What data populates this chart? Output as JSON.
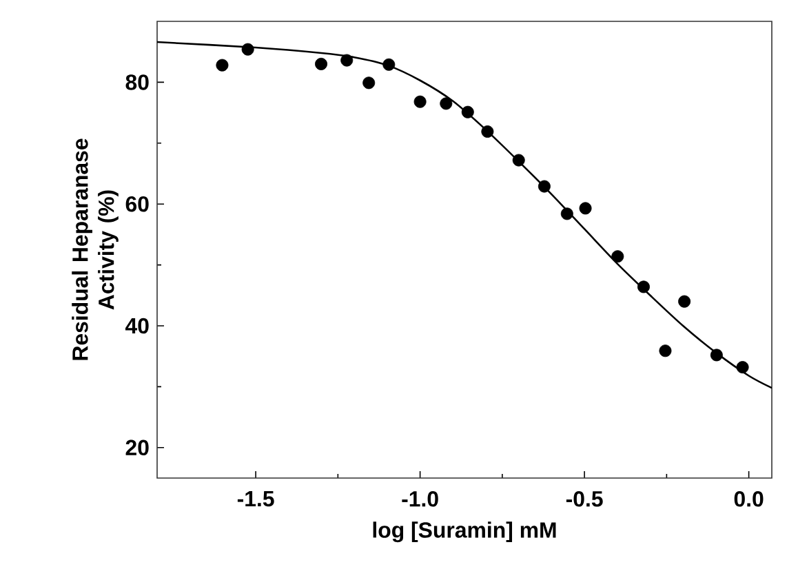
{
  "chart_data": {
    "type": "scatter",
    "xlabel": "log [Suramin] mM",
    "ylabel": "Residual Heparanase Activity (%)",
    "xlim": [
      -1.8,
      0.07
    ],
    "ylim": [
      15,
      90
    ],
    "xticks": [
      -1.5,
      {
        "value": -1.0,
        "label": "-1.0"
      },
      -0.5,
      {
        "value": 0.0,
        "label": "0.0"
      }
    ],
    "yticks": [
      20,
      40,
      60,
      80
    ],
    "grid": false,
    "marker": "circle",
    "series": [
      {
        "color": "#000000",
        "x": [
          -1.602,
          -1.524,
          -1.301,
          -1.223,
          -1.156,
          -1.095,
          -1.0,
          -0.921,
          -0.855,
          -0.795,
          -0.7,
          -0.622,
          -0.553,
          -0.497,
          -0.399,
          -0.32,
          -0.196,
          -0.254,
          -0.098,
          -0.019
        ],
        "values": [
          82.8,
          85.4,
          83.0,
          83.6,
          79.9,
          82.9,
          76.8,
          76.5,
          75.1,
          71.9,
          67.2,
          62.9,
          58.4,
          59.3,
          51.4,
          46.4,
          44.0,
          35.9,
          35.2,
          33.2
        ]
      },
      {
        "type": "line",
        "color": "#000000",
        "marker": "none",
        "line_style": "solid",
        "x": [
          -1.8,
          -1.5,
          -1.3,
          -1.2,
          -1.1,
          -1.0,
          -0.9,
          -0.8,
          -0.7,
          -0.6,
          -0.5,
          -0.4,
          -0.3,
          -0.2,
          -0.1,
          0.0,
          0.07
        ],
        "values": [
          86.6,
          85.7,
          84.8,
          84.1,
          82.8,
          80.3,
          76.9,
          72.2,
          67.0,
          61.6,
          55.9,
          50.2,
          45.0,
          40.0,
          35.6,
          31.8,
          29.8
        ]
      }
    ]
  }
}
